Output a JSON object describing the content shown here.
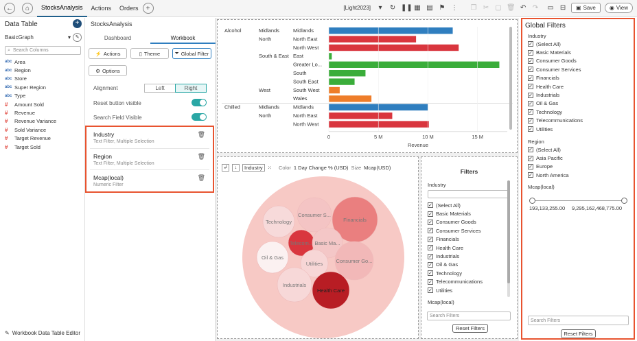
{
  "topbar": {
    "tabs": [
      "StocksAnalysis",
      "Actions",
      "Orders"
    ],
    "theme_label": "[Light2023]",
    "save_label": "Save",
    "view_label": "View"
  },
  "left": {
    "title": "Data Table",
    "source": "BasicGraph",
    "search_placeholder": "Search Columns",
    "columns": [
      {
        "type": "abc",
        "name": "Area"
      },
      {
        "type": "abc",
        "name": "Region"
      },
      {
        "type": "abc",
        "name": "Store"
      },
      {
        "type": "abc",
        "name": "Super Region"
      },
      {
        "type": "abc",
        "name": "Type"
      },
      {
        "type": "#",
        "name": "Amount Sold"
      },
      {
        "type": "#",
        "name": "Revenue"
      },
      {
        "type": "#",
        "name": "Revenue Variance"
      },
      {
        "type": "#",
        "name": "Sold Variance"
      },
      {
        "type": "#",
        "name": "Target Revenue"
      },
      {
        "type": "#",
        "name": "Target Sold"
      }
    ],
    "footer": "Workbook Data Table Editor"
  },
  "mid": {
    "title": "StocksAnalysis",
    "tabs": [
      "Dashboard",
      "Workbook"
    ],
    "actions_label": "Actions",
    "theme_label": "Theme",
    "global_filter_label": "Global Filter",
    "options_label": "Options",
    "alignment_label": "Alignment",
    "align_left": "Left",
    "align_right": "Right",
    "reset_visible_label": "Reset button visible",
    "search_visible_label": "Search Field Visible",
    "filters": [
      {
        "name": "Industry",
        "desc": "Text Filter, Multiple Selection"
      },
      {
        "name": "Region",
        "desc": "Text Filter, Multiple Selection"
      },
      {
        "name": "Mcap(local)",
        "desc": "Numeric Filter"
      }
    ]
  },
  "bar_chart": {
    "xlabel": "Revenue",
    "ticks": [
      "0",
      "5 M",
      "10 M",
      "15 M"
    ],
    "rows": [
      {
        "type": "Alcohol",
        "super": "Midlands",
        "region": "Midlands",
        "value": 12.5,
        "color": "#2f7ebf"
      },
      {
        "type": "",
        "super": "North",
        "region": "North East",
        "value": 8.8,
        "color": "#d9363e"
      },
      {
        "type": "",
        "super": "",
        "region": "North West",
        "value": 13.1,
        "color": "#d9363e"
      },
      {
        "type": "",
        "super": "South & East",
        "region": "East",
        "value": 0.3,
        "color": "#3aad3a"
      },
      {
        "type": "",
        "super": "",
        "region": "Greater Lo...",
        "value": 17.2,
        "color": "#3aad3a"
      },
      {
        "type": "",
        "super": "",
        "region": "South",
        "value": 3.7,
        "color": "#3aad3a"
      },
      {
        "type": "",
        "super": "",
        "region": "South East",
        "value": 2.6,
        "color": "#3aad3a"
      },
      {
        "type": "",
        "super": "West",
        "region": "South West",
        "value": 1.1,
        "color": "#ee7d2a"
      },
      {
        "type": "",
        "super": "",
        "region": "Wales",
        "value": 4.3,
        "color": "#ee7d2a"
      },
      {
        "type": "Chilled",
        "super": "Midlands",
        "region": "Midlands",
        "value": 10.0,
        "color": "#2f7ebf"
      },
      {
        "type": "",
        "super": "North",
        "region": "North East",
        "value": 6.4,
        "color": "#d9363e"
      },
      {
        "type": "",
        "super": "",
        "region": "North West",
        "value": 10.1,
        "color": "#d9363e"
      }
    ]
  },
  "bubble": {
    "by_label": "Industry",
    "color_label": "Color",
    "color_value": "1 Day Change % (USD)",
    "size_label": "Size",
    "size_value": "Mcap(USD)",
    "bubbles": [
      {
        "label": "Technology",
        "color": "#f7dada"
      },
      {
        "label": "Consumer S...",
        "color": "#f4c4c4"
      },
      {
        "label": "Financials",
        "color": "#ea7f7f"
      },
      {
        "label": "Telecom...",
        "color": "#d9363e"
      },
      {
        "label": "Basic Ma...",
        "color": "#f4c7c7"
      },
      {
        "label": "Oil & Gas",
        "color": "#fbf1f1"
      },
      {
        "label": "Utilities",
        "color": "#f7d6d6"
      },
      {
        "label": "Consumer Go...",
        "color": "#f2b8b8"
      },
      {
        "label": "Industrials",
        "color": "#f7d8d8"
      },
      {
        "label": "Health Care",
        "color": "#b81d24"
      }
    ]
  },
  "filters_box": {
    "title": "Filters",
    "industry_label": "Industry",
    "industries": [
      "(Select All)",
      "Basic Materials",
      "Consumer Goods",
      "Consumer Services",
      "Financials",
      "Health Care",
      "Industrials",
      "Oil & Gas",
      "Technology",
      "Telecommunications",
      "Utilities"
    ],
    "mcap_label": "Mcap(local)",
    "search_placeholder": "Search Filters",
    "reset_label": "Reset Filters"
  },
  "global_filters": {
    "title": "Global Filters",
    "industry_label": "Industry",
    "industries": [
      "(Select All)",
      "Basic Materials",
      "Consumer Goods",
      "Consumer Services",
      "Financials",
      "Health Care",
      "Industrials",
      "Oil & Gas",
      "Technology",
      "Telecommunications",
      "Utilities"
    ],
    "region_label": "Region",
    "regions": [
      "(Select All)",
      "Asia Pacific",
      "Europe",
      "North America"
    ],
    "mcap_label": "Mcap(local)",
    "mcap_min": "193,133,255.00",
    "mcap_max": "9,295,162,468,775.00",
    "search_placeholder": "Search Filters",
    "reset_label": "Reset Filters"
  }
}
